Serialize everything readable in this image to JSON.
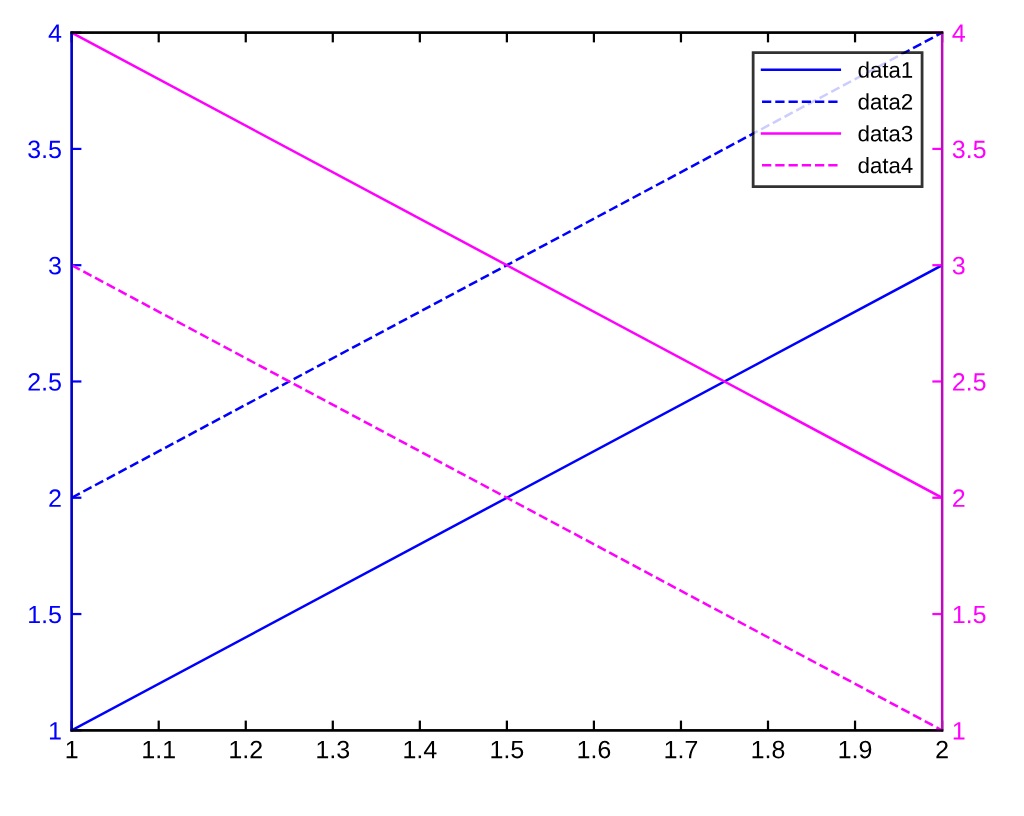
{
  "chart_data": {
    "type": "line",
    "x": [
      1,
      2
    ],
    "series": [
      {
        "name": "data1",
        "color": "#0000ff",
        "values": [
          1,
          3
        ],
        "line_style": "solid"
      },
      {
        "name": "data2",
        "color": "#0000ff",
        "values": [
          2,
          4
        ],
        "line_style": "dashed"
      },
      {
        "name": "data3",
        "color": "#ff00ff",
        "values": [
          4,
          2
        ],
        "line_style": "solid",
        "axis": "y2"
      },
      {
        "name": "data4",
        "color": "#ff00ff",
        "values": [
          3,
          1
        ],
        "line_style": "dashed",
        "axis": "y2"
      }
    ],
    "xlim": [
      1,
      2
    ],
    "xticks": [
      1,
      1.1,
      1.2,
      1.3,
      1.4,
      1.5,
      1.6,
      1.7,
      1.8,
      1.9,
      2
    ],
    "ylim": [
      1,
      4
    ],
    "yticks": [
      1,
      1.5,
      2,
      2.5,
      3,
      3.5,
      4
    ],
    "y2lim": [
      1,
      4
    ],
    "y2ticks": [
      1,
      1.5,
      2,
      2.5,
      3,
      3.5,
      4
    ],
    "grid": false,
    "legend": "top right"
  }
}
